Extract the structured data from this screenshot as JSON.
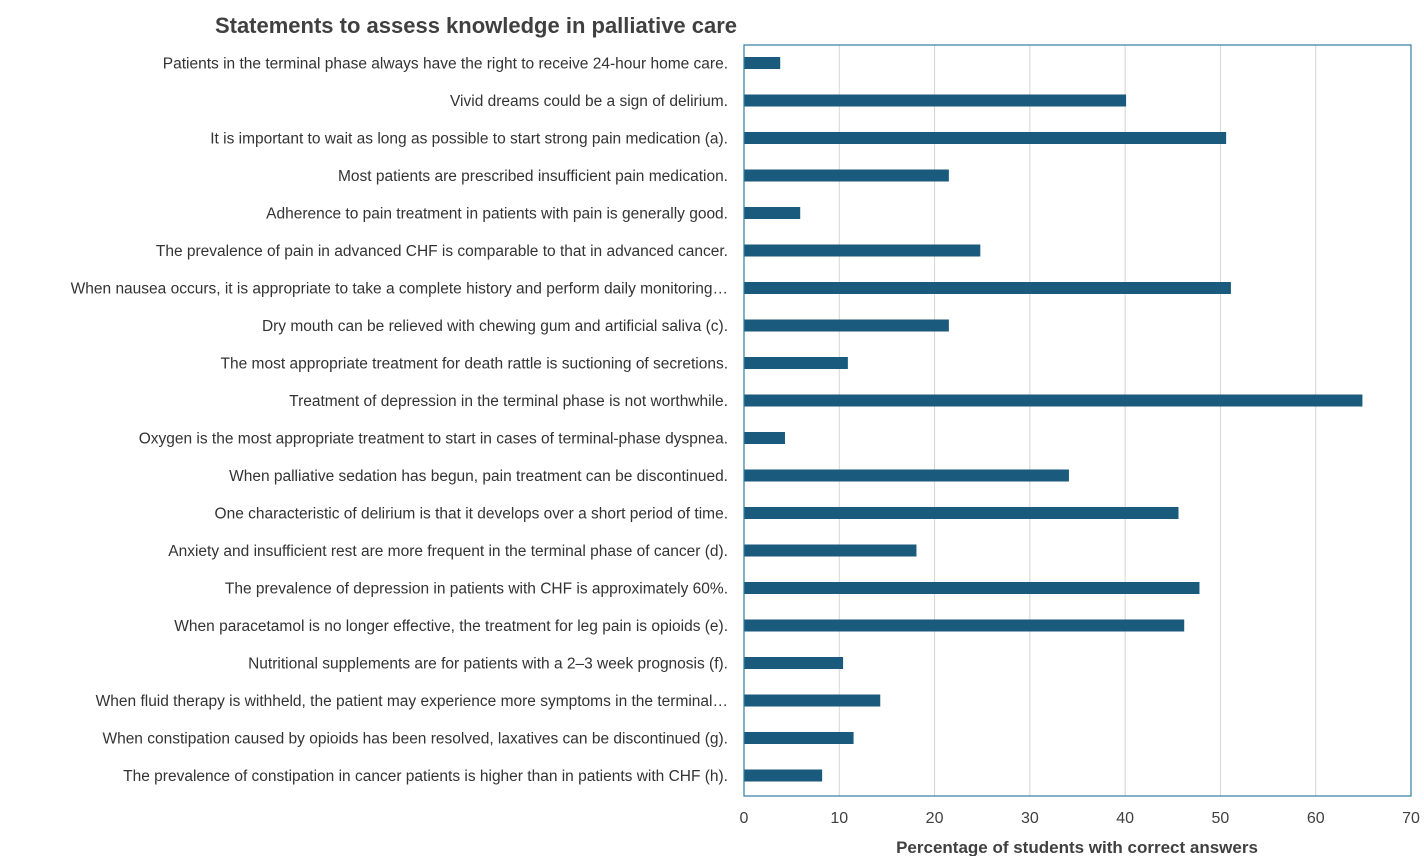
{
  "chart_data": {
    "type": "bar",
    "orientation": "horizontal",
    "title": "Statements to assess knowledge in palliative care",
    "xlabel": "Percentage of students with correct answers",
    "ylabel": "",
    "xlim": [
      0,
      70
    ],
    "xticks": [
      0,
      10,
      20,
      30,
      40,
      50,
      60,
      70
    ],
    "grid": "vertical",
    "legend": "none",
    "bar_color": "#1a5a7d",
    "frame_color": "#2e7da3",
    "categories": [
      "Patients in the terminal phase always have the right to receive 24-hour home care.",
      "Vivid dreams could be a sign of delirium.",
      "It is important to wait as long as possible to start strong pain medication (a).",
      "Most patients are prescribed insufficient pain medication.",
      "Adherence to pain treatment in patients with pain is generally good.",
      "The prevalence of pain in advanced CHF is comparable to that in advanced cancer.",
      "When nausea occurs, it is appropriate to take a complete history and perform daily monitoring…",
      "Dry mouth can be relieved with chewing gum and artificial saliva (c).",
      "The most appropriate treatment for death rattle is suctioning of secretions.",
      "Treatment of depression in the terminal phase is not worthwhile.",
      "Oxygen is the most appropriate treatment to start in cases of terminal-phase dyspnea.",
      "When palliative sedation has begun, pain treatment can be discontinued.",
      "One characteristic of delirium is that it develops over a short period of time.",
      "Anxiety and insufficient rest are more frequent in the terminal phase of cancer (d).",
      "The prevalence of depression in patients with CHF is approximately 60%.",
      "When paracetamol is no longer effective, the treatment for leg pain is opioids (e).",
      "Nutritional supplements are for patients with a 2–3 week prognosis (f).",
      "When fluid therapy is withheld, the patient may experience more symptoms in the terminal…",
      "When constipation caused by opioids has been resolved, laxatives can be discontinued (g).",
      "The prevalence of constipation in cancer patients is higher than in patients with CHF (h)."
    ],
    "values": [
      3.8,
      40.1,
      50.6,
      21.5,
      5.9,
      24.8,
      51.1,
      21.5,
      10.9,
      64.9,
      4.3,
      34.1,
      45.6,
      18.1,
      47.8,
      46.2,
      10.4,
      14.3,
      11.5,
      8.2
    ]
  }
}
